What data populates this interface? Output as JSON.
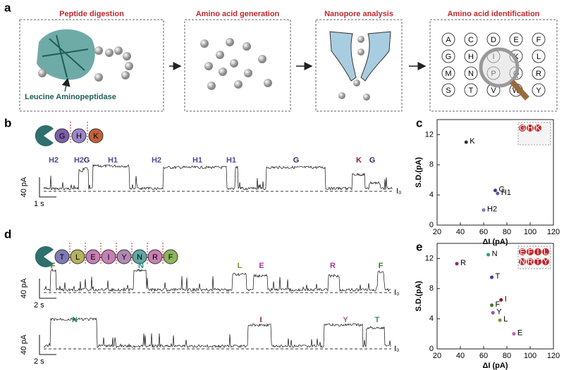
{
  "panel_a": {
    "label": "a",
    "steps": [
      "Peptide digestion",
      "Amino acid generation",
      "Nanopore analysis",
      "Amino acid identification"
    ],
    "enzyme": "Leucine Aminopeptidase",
    "letters": [
      "A",
      "C",
      "D",
      "E",
      "F",
      "G",
      "H",
      "I",
      "K",
      "L",
      "M",
      "N",
      "P",
      "Q",
      "R",
      "S",
      "T",
      "V",
      "W",
      "Y"
    ]
  },
  "panel_b": {
    "label": "b",
    "peptide": [
      {
        "label": "G",
        "color": "#7b5ea7"
      },
      {
        "label": "H",
        "color": "#9a86c8"
      },
      {
        "label": "K",
        "color": "#c0603a"
      }
    ],
    "events": [
      {
        "label": "H2",
        "color": "#4b4b9b"
      },
      {
        "label": "H2",
        "color": "#4b4b9b"
      },
      {
        "label": "G",
        "color": "#2b2b5b"
      },
      {
        "label": "H1",
        "color": "#4b4b9b"
      },
      {
        "label": "H2",
        "color": "#4b4b9b"
      },
      {
        "label": "H1",
        "color": "#4b4b9b"
      },
      {
        "label": "H1",
        "color": "#4b4b9b"
      },
      {
        "label": "G",
        "color": "#2b2b5b"
      },
      {
        "label": "K",
        "color": "#8b1a1a"
      },
      {
        "label": "G",
        "color": "#2b2b5b"
      }
    ],
    "open_level": "I₀",
    "scale_current": "40 pA",
    "scale_time": "1 s"
  },
  "panel_d": {
    "label": "d",
    "peptide": [
      {
        "label": "T",
        "color": "#7e7bb5"
      },
      {
        "label": "L",
        "color": "#b5b35a"
      },
      {
        "label": "E",
        "color": "#c77fb5"
      },
      {
        "label": "I",
        "color": "#c77fb5"
      },
      {
        "label": "Y",
        "color": "#b08ab5"
      },
      {
        "label": "N",
        "color": "#5fa7a5"
      },
      {
        "label": "R",
        "color": "#c77fb5"
      },
      {
        "label": "F",
        "color": "#8db55a"
      }
    ],
    "events_1": [
      {
        "label": "F",
        "color": "#3a7a2a"
      },
      {
        "label": "N",
        "color": "#2a8a7a"
      },
      {
        "label": "L",
        "color": "#8a8a2a"
      },
      {
        "label": "E",
        "color": "#a03a9a"
      },
      {
        "label": "R",
        "color": "#a03a9a"
      },
      {
        "label": "F",
        "color": "#3a7a2a"
      }
    ],
    "events_2": [
      {
        "label": "N",
        "color": "#2a8a7a"
      },
      {
        "label": "I",
        "color": "#8b1a1a"
      },
      {
        "label": "Y",
        "color": "#9a5aa0"
      },
      {
        "label": "T",
        "color": "#2a8a7a"
      }
    ],
    "open_level": "I₀",
    "scale_current": "40 pA",
    "scale_time": "2 s"
  },
  "chart_data": [
    {
      "type": "scatter",
      "label": "c",
      "xlabel": "ΔI (pA)",
      "ylabel": "S.D.(pA)",
      "xlim": [
        20,
        120
      ],
      "xticks": [
        20,
        40,
        60,
        80,
        100,
        120
      ],
      "ylim": [
        0,
        14
      ],
      "yticks": [
        0,
        4,
        8,
        12
      ],
      "inset": [
        "G",
        "H",
        "K"
      ],
      "series": [
        {
          "name": "K",
          "color": "#333333",
          "x": [
            45
          ],
          "values": [
            11
          ]
        },
        {
          "name": "G",
          "color": "#3a3a8a",
          "x": [
            70
          ],
          "values": [
            4.6
          ]
        },
        {
          "name": "H1",
          "color": "#5a5aaa",
          "x": [
            72
          ],
          "values": [
            4.2
          ]
        },
        {
          "name": "H2",
          "color": "#7a7ac8",
          "x": [
            60
          ],
          "values": [
            2
          ]
        }
      ]
    },
    {
      "type": "scatter",
      "label": "e",
      "xlabel": "ΔI (pA)",
      "ylabel": "S.D.(pA)",
      "xlim": [
        20,
        120
      ],
      "xticks": [
        20,
        40,
        60,
        80,
        100,
        120
      ],
      "ylim": [
        0,
        14
      ],
      "yticks": [
        0,
        4,
        8,
        12
      ],
      "inset": [
        "E",
        "F",
        "I",
        "L",
        "N",
        "R",
        "T",
        "Y"
      ],
      "series": [
        {
          "name": "R",
          "color": "#8a2a6a",
          "x": [
            37
          ],
          "values": [
            11.3
          ]
        },
        {
          "name": "N",
          "color": "#2a9a8a",
          "x": [
            64
          ],
          "values": [
            12.5
          ]
        },
        {
          "name": "T",
          "color": "#3a3aaa",
          "x": [
            67
          ],
          "values": [
            9.5
          ]
        },
        {
          "name": "I",
          "color": "#8b1a1a",
          "x": [
            75
          ],
          "values": [
            6.5
          ]
        },
        {
          "name": "F",
          "color": "#3a7a2a",
          "x": [
            67
          ],
          "values": [
            5.8
          ]
        },
        {
          "name": "Y",
          "color": "#9a5aa0",
          "x": [
            68
          ],
          "values": [
            4.8
          ]
        },
        {
          "name": "L",
          "color": "#8a8a2a",
          "x": [
            74
          ],
          "values": [
            3.8
          ]
        },
        {
          "name": "E",
          "color": "#c060b0",
          "x": [
            86
          ],
          "values": [
            2
          ]
        }
      ]
    }
  ]
}
